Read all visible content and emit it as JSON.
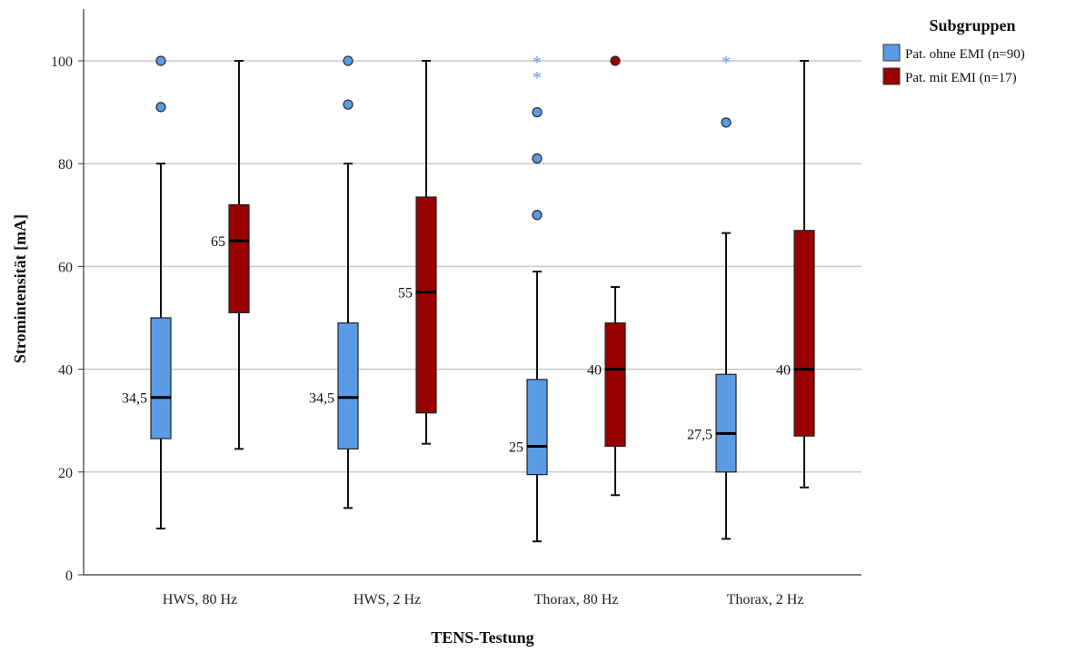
{
  "chart_data": {
    "type": "boxplot",
    "xlabel": "TENS-Testung",
    "ylabel": "Stromintensität [mA]",
    "ylim": [
      0,
      110
    ],
    "yticks": [
      0,
      20,
      40,
      60,
      80,
      100
    ],
    "grid": true,
    "legend_placement": "top-right",
    "legend_title": "Subgruppen",
    "categories": [
      "HWS, 80 Hz",
      "HWS, 2 Hz",
      "Thorax, 80 Hz",
      "Thorax, 2 Hz"
    ],
    "series": [
      {
        "name": "Pat. ohne  EMI (n=90)",
        "color": "#5b9be6",
        "boxes": [
          {
            "min": 9,
            "q1": 26.5,
            "median": 34.5,
            "q3": 50,
            "max": 80,
            "median_label": "34,5",
            "outliers": [
              91,
              100
            ],
            "extremes": []
          },
          {
            "min": 13,
            "q1": 24.5,
            "median": 34.5,
            "q3": 49,
            "max": 80,
            "median_label": "34,5",
            "outliers": [
              91.5,
              100
            ],
            "extremes": []
          },
          {
            "min": 6.5,
            "q1": 19.5,
            "median": 25,
            "q3": 38,
            "max": 59,
            "median_label": "25",
            "outliers": [
              70,
              81,
              90
            ],
            "extremes": [
              97,
              100
            ]
          },
          {
            "min": 7,
            "q1": 20,
            "median": 27.5,
            "q3": 39,
            "max": 66.5,
            "median_label": "27,5",
            "outliers": [
              88
            ],
            "extremes": [
              100
            ]
          }
        ]
      },
      {
        "name": "Pat. mit EMI (n=17)",
        "color": "#990000",
        "boxes": [
          {
            "min": 24.5,
            "q1": 51,
            "median": 65,
            "q3": 72,
            "max": 100,
            "median_label": "65",
            "outliers": [],
            "extremes": []
          },
          {
            "min": 25.5,
            "q1": 31.5,
            "median": 55,
            "q3": 73.5,
            "max": 100,
            "median_label": "55",
            "outliers": [],
            "extremes": []
          },
          {
            "min": 15.5,
            "q1": 25,
            "median": 40,
            "q3": 49,
            "max": 56,
            "median_label": "40",
            "outliers": [
              100
            ],
            "extremes": []
          },
          {
            "min": 17,
            "q1": 27,
            "median": 40,
            "q3": 67,
            "max": 100,
            "median_label": "40",
            "outliers": [],
            "extremes": []
          }
        ]
      }
    ]
  }
}
